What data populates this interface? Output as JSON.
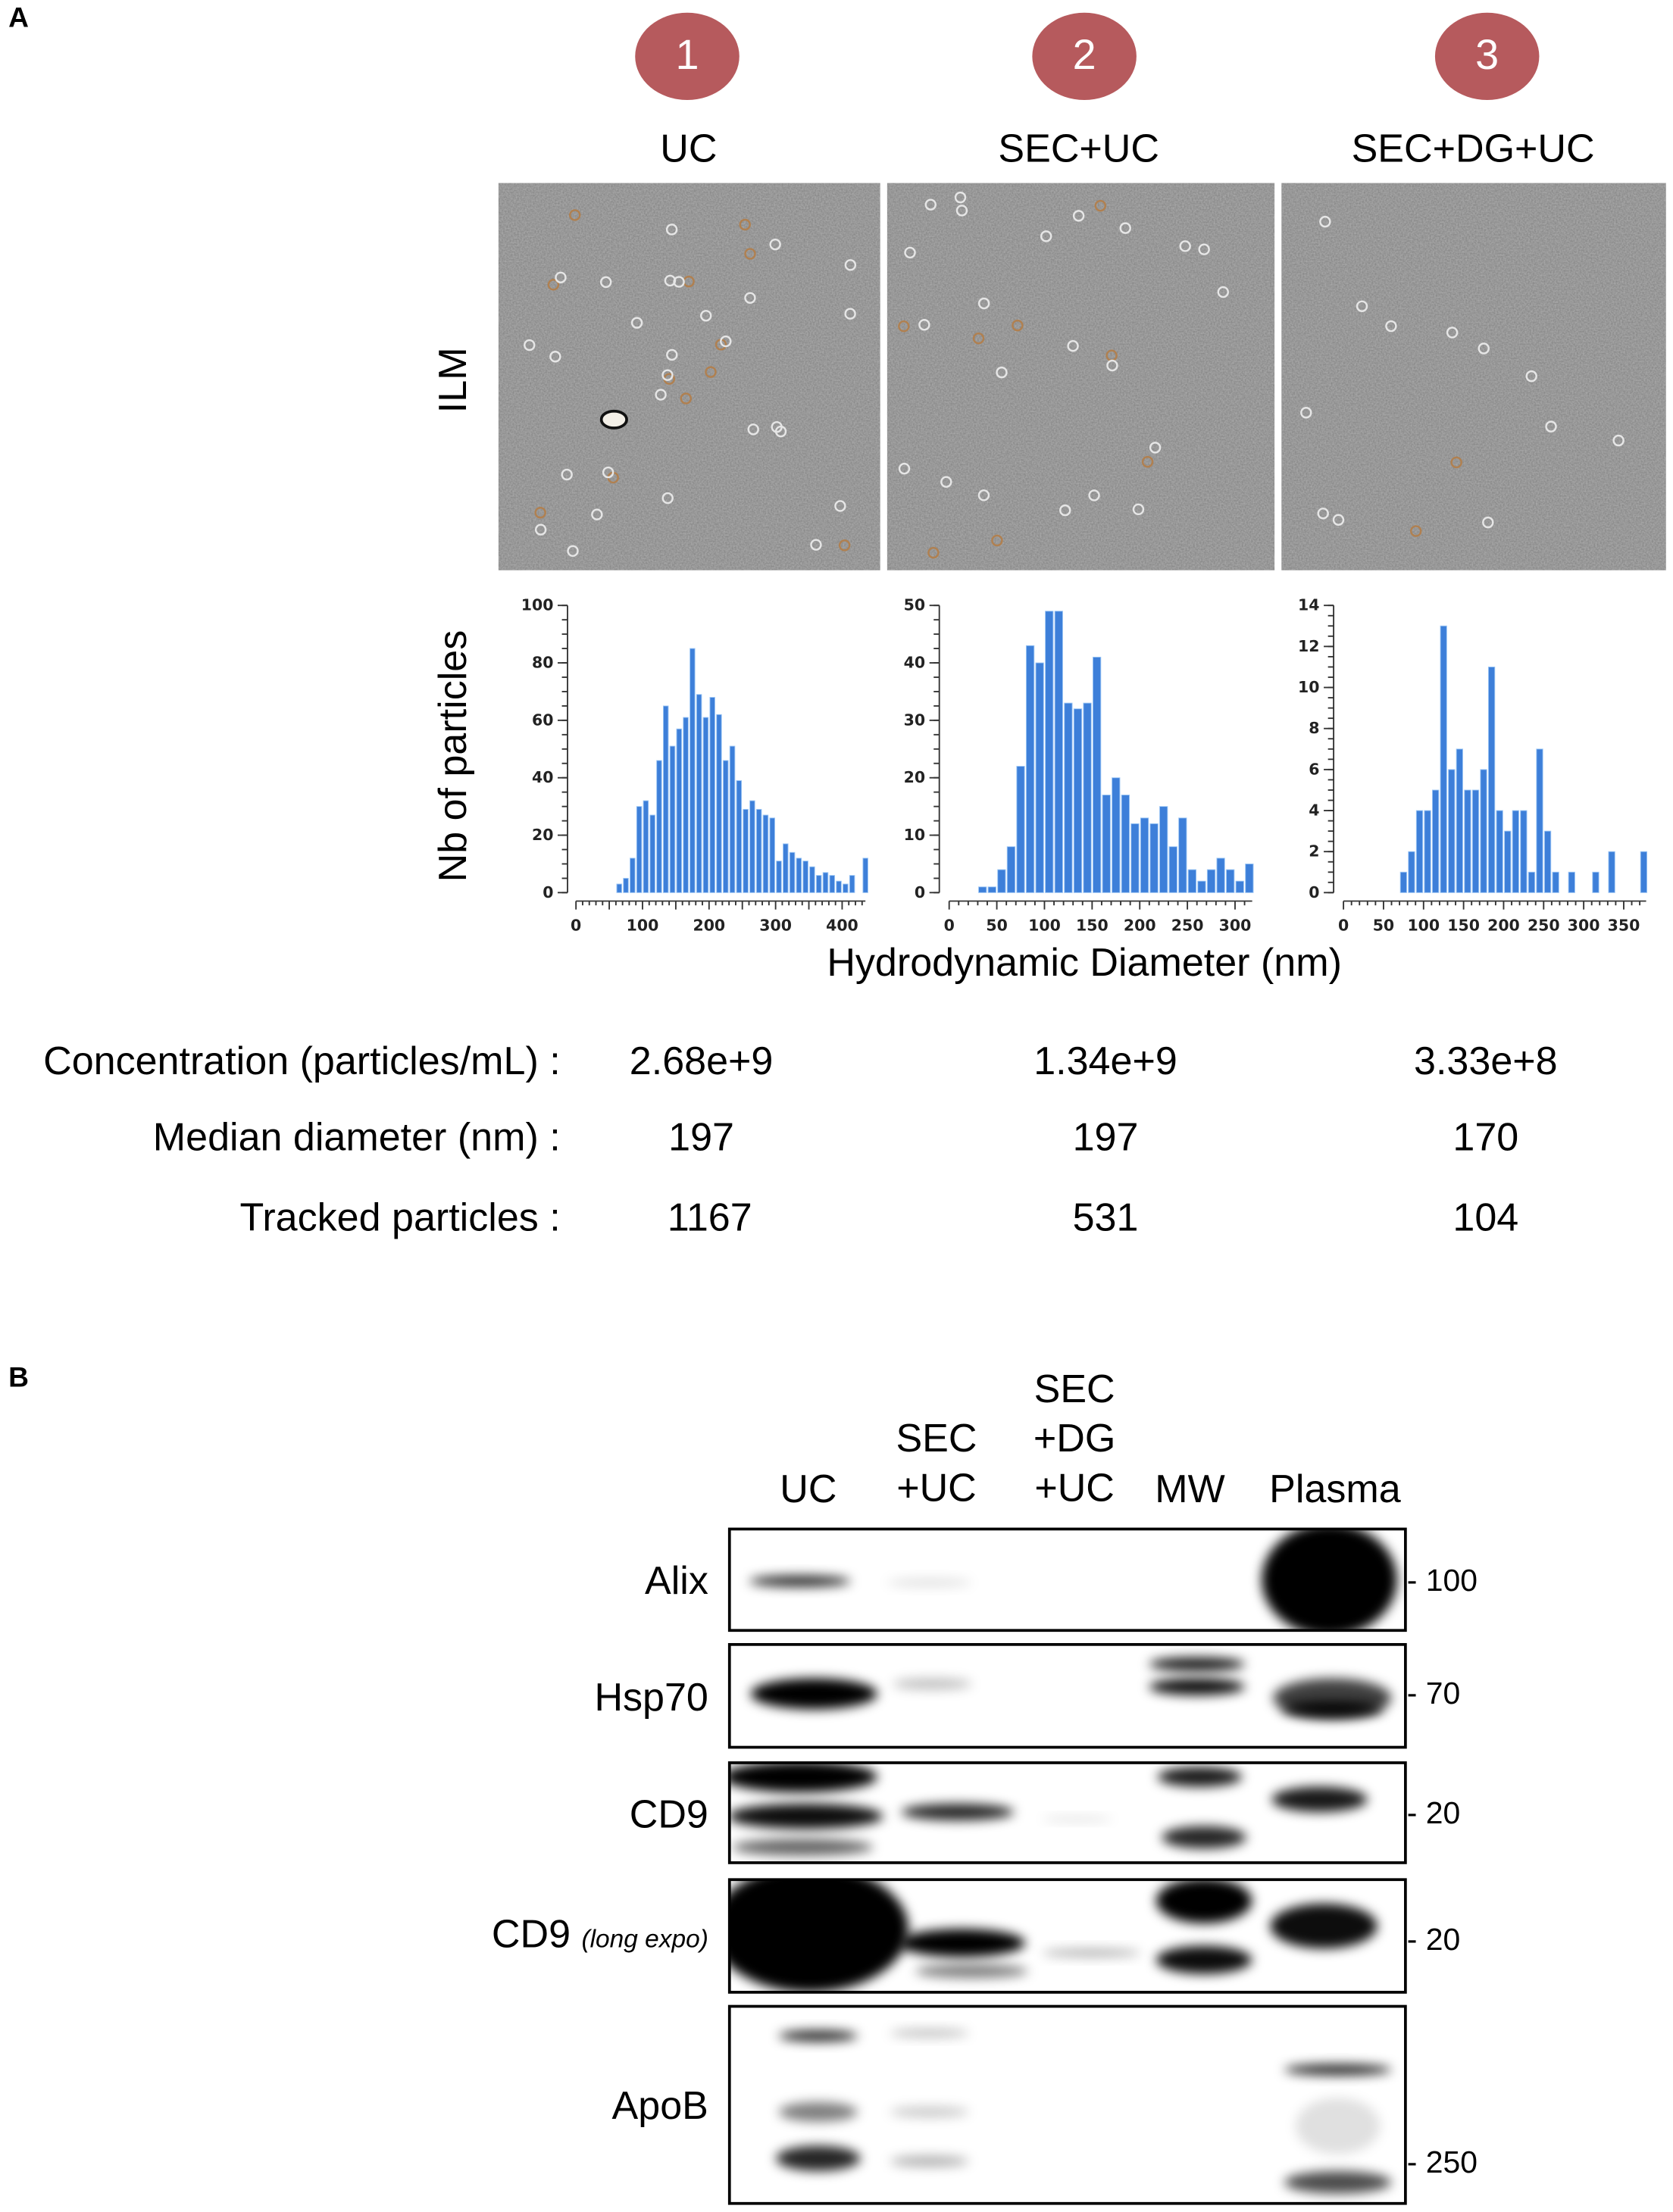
{
  "panel_a": {
    "letter": "A",
    "conditions": [
      {
        "number": "1",
        "label": "UC"
      },
      {
        "number": "2",
        "label": "SEC+UC"
      },
      {
        "number": "3",
        "label": "SEC+DG+UC"
      }
    ],
    "badge_color": "#b65a5d",
    "image_row_label": "ILM",
    "histogram_ylabel": "Nb of particles",
    "histogram_xlabel": "Hydrodynamic Diameter (nm)",
    "table": {
      "rows": [
        {
          "label": "Concentration (particles/mL) :",
          "values": [
            "2.68e+9",
            "1.34e+9",
            "3.33e+8"
          ]
        },
        {
          "label": "Median diameter (nm) :",
          "values": [
            "197",
            "197",
            "170"
          ]
        },
        {
          "label": "Tracked particles :",
          "values": [
            "1167",
            "531",
            "104"
          ]
        }
      ]
    }
  },
  "chart_data": [
    {
      "type": "bar",
      "condition": "UC",
      "bin_width": 10,
      "bin_starts": [
        60,
        70,
        80,
        90,
        100,
        110,
        120,
        130,
        140,
        150,
        160,
        170,
        180,
        190,
        200,
        210,
        220,
        230,
        240,
        250,
        260,
        270,
        280,
        290,
        300,
        310,
        320,
        330,
        340,
        350,
        360,
        370,
        380,
        390,
        400,
        410,
        420,
        430
      ],
      "values": [
        3,
        5,
        12,
        30,
        32,
        27,
        46,
        65,
        51,
        57,
        61,
        85,
        69,
        61,
        68,
        62,
        46,
        51,
        39,
        29,
        32,
        29,
        27,
        26,
        11,
        17,
        14,
        12,
        11,
        9,
        6,
        7,
        6,
        4,
        3,
        6,
        0,
        12
      ],
      "xlim": [
        0,
        435
      ],
      "ylim": [
        0,
        100
      ],
      "xticks": [
        "0",
        "100",
        "200",
        "300",
        "400"
      ],
      "yticks": [
        "0",
        "20",
        "40",
        "60",
        "80",
        "100"
      ],
      "bar_color": "#3d7fd9"
    },
    {
      "type": "bar",
      "condition": "SEC+UC",
      "bin_width": 10,
      "bin_starts": [
        30,
        40,
        50,
        60,
        70,
        80,
        90,
        100,
        110,
        120,
        130,
        140,
        150,
        160,
        170,
        180,
        190,
        200,
        210,
        220,
        230,
        240,
        250,
        260,
        270,
        280,
        290,
        300,
        310
      ],
      "values": [
        1,
        1,
        4,
        8,
        22,
        43,
        40,
        49,
        49,
        33,
        32,
        33,
        41,
        17,
        20,
        17,
        12,
        13,
        12,
        15,
        8,
        13,
        4,
        2,
        4,
        6,
        4,
        2,
        5
      ],
      "xlim": [
        0,
        318
      ],
      "ylim": [
        0,
        50
      ],
      "xticks": [
        "0",
        "50",
        "100",
        "150",
        "200",
        "250",
        "300"
      ],
      "yticks": [
        "0",
        "10",
        "20",
        "30",
        "40",
        "50"
      ],
      "bar_color": "#3d7fd9"
    },
    {
      "type": "bar",
      "condition": "SEC+DG+UC",
      "bin_width": 10,
      "bin_starts": [
        70,
        80,
        90,
        100,
        110,
        120,
        130,
        140,
        150,
        160,
        170,
        180,
        190,
        200,
        210,
        220,
        230,
        240,
        250,
        260,
        270,
        280,
        290,
        300,
        310,
        320,
        330,
        340,
        350,
        360,
        370
      ],
      "values": [
        1,
        2,
        4,
        4,
        5,
        13,
        6,
        7,
        5,
        5,
        6,
        11,
        4,
        3,
        4,
        4,
        1,
        7,
        3,
        1,
        0,
        1,
        0,
        0,
        1,
        0,
        2,
        0,
        0,
        0,
        2
      ],
      "xlim": [
        0,
        378
      ],
      "ylim": [
        0,
        14
      ],
      "xticks": [
        "0",
        "50",
        "100",
        "150",
        "200",
        "250",
        "300",
        "350"
      ],
      "yticks": [
        "0",
        "2",
        "4",
        "6",
        "8",
        "10",
        "12",
        "14"
      ],
      "bar_color": "#3d7fd9"
    }
  ],
  "panel_b": {
    "letter": "B",
    "lanes": [
      {
        "lines": [
          "UC"
        ]
      },
      {
        "lines": [
          "SEC",
          "+UC"
        ]
      },
      {
        "lines": [
          "SEC",
          "+DG",
          "+UC"
        ]
      },
      {
        "lines": [
          "MW"
        ]
      },
      {
        "lines": [
          "Plasma"
        ]
      }
    ],
    "blots": [
      {
        "label": "Alix",
        "note": "",
        "mw_marker": "- 100"
      },
      {
        "label": "Hsp70",
        "note": "",
        "mw_marker": "- 70"
      },
      {
        "label": "CD9",
        "note": "",
        "mw_marker": "- 20"
      },
      {
        "label": "CD9",
        "note": "(long expo)",
        "mw_marker": "- 20"
      },
      {
        "label": "ApoB",
        "note": "",
        "mw_marker": "- 250"
      }
    ]
  }
}
